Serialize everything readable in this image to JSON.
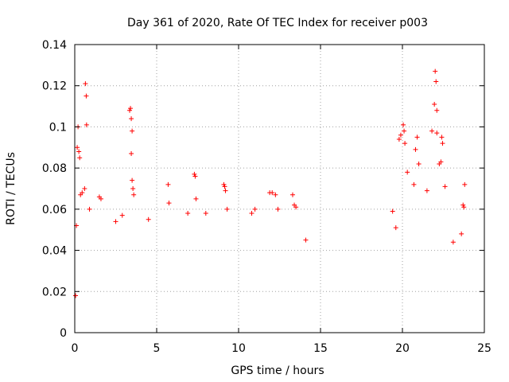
{
  "chart_data": {
    "type": "scatter",
    "title": "Day 361 of 2020, Rate Of TEC Index for receiver p003",
    "xlabel": "GPS time / hours",
    "ylabel": "ROTI / TECUs",
    "xlim": [
      0,
      25
    ],
    "ylim": [
      0,
      0.14
    ],
    "xticks": [
      0,
      5,
      10,
      15,
      20,
      25
    ],
    "xtick_labels": [
      "0",
      "5",
      "10",
      "15",
      "20",
      "25"
    ],
    "yticks": [
      0,
      0.02,
      0.04,
      0.06,
      0.08,
      0.1,
      0.12,
      0.14
    ],
    "ytick_labels": [
      "0",
      "0.02",
      "0.04",
      "0.06",
      "0.08",
      "0.1",
      "0.12",
      "0.14"
    ],
    "grid": true,
    "marker": "plus",
    "series_color": "#ff0000",
    "series": [
      {
        "name": "ROTI",
        "points": [
          [
            0.05,
            0.018
          ],
          [
            0.1,
            0.052
          ],
          [
            0.15,
            0.09
          ],
          [
            0.2,
            0.1
          ],
          [
            0.25,
            0.088
          ],
          [
            0.3,
            0.085
          ],
          [
            0.35,
            0.067
          ],
          [
            0.45,
            0.068
          ],
          [
            0.6,
            0.07
          ],
          [
            0.65,
            0.121
          ],
          [
            0.7,
            0.115
          ],
          [
            0.72,
            0.101
          ],
          [
            0.9,
            0.06
          ],
          [
            1.5,
            0.066
          ],
          [
            1.6,
            0.065
          ],
          [
            2.5,
            0.054
          ],
          [
            2.9,
            0.057
          ],
          [
            3.35,
            0.108
          ],
          [
            3.4,
            0.109
          ],
          [
            3.45,
            0.104
          ],
          [
            3.5,
            0.098
          ],
          [
            3.45,
            0.087
          ],
          [
            3.5,
            0.074
          ],
          [
            3.55,
            0.07
          ],
          [
            3.6,
            0.067
          ],
          [
            4.5,
            0.055
          ],
          [
            5.7,
            0.072
          ],
          [
            5.75,
            0.063
          ],
          [
            6.9,
            0.058
          ],
          [
            7.3,
            0.077
          ],
          [
            7.35,
            0.076
          ],
          [
            7.4,
            0.065
          ],
          [
            8.0,
            0.058
          ],
          [
            9.1,
            0.072
          ],
          [
            9.15,
            0.071
          ],
          [
            9.2,
            0.069
          ],
          [
            9.3,
            0.06
          ],
          [
            10.8,
            0.058
          ],
          [
            11.0,
            0.06
          ],
          [
            11.9,
            0.068
          ],
          [
            12.05,
            0.068
          ],
          [
            12.25,
            0.067
          ],
          [
            12.4,
            0.06
          ],
          [
            13.3,
            0.067
          ],
          [
            13.4,
            0.062
          ],
          [
            13.5,
            0.061
          ],
          [
            14.1,
            0.045
          ],
          [
            19.4,
            0.059
          ],
          [
            19.6,
            0.051
          ],
          [
            19.8,
            0.094
          ],
          [
            19.9,
            0.096
          ],
          [
            20.05,
            0.101
          ],
          [
            20.1,
            0.098
          ],
          [
            20.15,
            0.092
          ],
          [
            20.3,
            0.078
          ],
          [
            20.7,
            0.072
          ],
          [
            20.8,
            0.089
          ],
          [
            20.9,
            0.095
          ],
          [
            21.0,
            0.082
          ],
          [
            21.5,
            0.069
          ],
          [
            21.8,
            0.098
          ],
          [
            21.95,
            0.111
          ],
          [
            22.0,
            0.127
          ],
          [
            22.05,
            0.122
          ],
          [
            22.1,
            0.108
          ],
          [
            22.1,
            0.097
          ],
          [
            22.25,
            0.082
          ],
          [
            22.35,
            0.083
          ],
          [
            22.4,
            0.095
          ],
          [
            22.45,
            0.092
          ],
          [
            22.6,
            0.071
          ],
          [
            23.1,
            0.044
          ],
          [
            23.6,
            0.048
          ],
          [
            23.7,
            0.062
          ],
          [
            23.75,
            0.061
          ],
          [
            23.8,
            0.072
          ]
        ]
      }
    ]
  }
}
